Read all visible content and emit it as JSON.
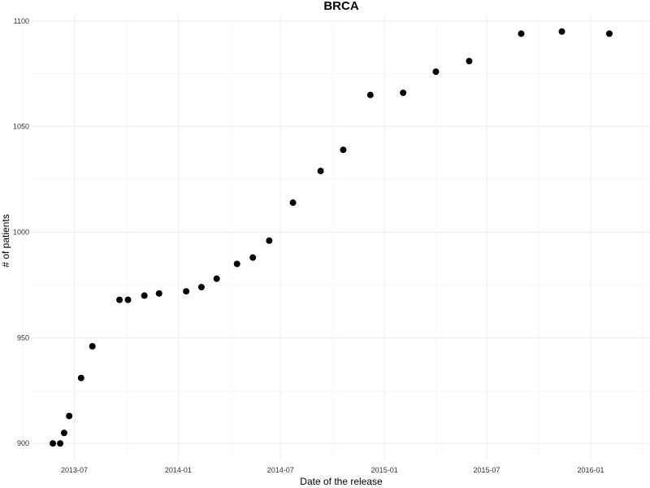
{
  "chart_data": {
    "type": "scatter",
    "title": "BRCA",
    "xlabel": "Date of the release",
    "ylabel": "# of patients",
    "x_ticks": [
      "2013-07",
      "2014-01",
      "2014-07",
      "2015-01",
      "2015-07",
      "2016-01"
    ],
    "y_ticks": [
      900,
      950,
      1000,
      1050,
      1100
    ],
    "xlim": [
      "2013-04-18",
      "2016-04-15"
    ],
    "ylim": [
      892,
      1103
    ],
    "grid": true,
    "point_color": "#000000",
    "background": "#ffffff",
    "points": [
      {
        "x": "2013-05-24",
        "y": 900
      },
      {
        "x": "2013-06-06",
        "y": 900
      },
      {
        "x": "2013-06-13",
        "y": 905
      },
      {
        "x": "2013-06-22",
        "y": 913
      },
      {
        "x": "2013-07-13",
        "y": 931
      },
      {
        "x": "2013-08-02",
        "y": 946
      },
      {
        "x": "2013-09-19",
        "y": 968
      },
      {
        "x": "2013-10-04",
        "y": 968
      },
      {
        "x": "2013-11-02",
        "y": 970
      },
      {
        "x": "2013-11-28",
        "y": 971
      },
      {
        "x": "2014-01-15",
        "y": 972
      },
      {
        "x": "2014-02-11",
        "y": 974
      },
      {
        "x": "2014-03-10",
        "y": 978
      },
      {
        "x": "2014-04-15",
        "y": 985
      },
      {
        "x": "2014-05-13",
        "y": 988
      },
      {
        "x": "2014-06-11",
        "y": 996
      },
      {
        "x": "2014-07-23",
        "y": 1014
      },
      {
        "x": "2014-09-10",
        "y": 1029
      },
      {
        "x": "2014-10-20",
        "y": 1039
      },
      {
        "x": "2014-12-07",
        "y": 1065
      },
      {
        "x": "2015-02-03",
        "y": 1066
      },
      {
        "x": "2015-04-02",
        "y": 1076
      },
      {
        "x": "2015-05-31",
        "y": 1081
      },
      {
        "x": "2015-08-31",
        "y": 1094
      },
      {
        "x": "2015-11-11",
        "y": 1095
      },
      {
        "x": "2016-02-03",
        "y": 1094
      }
    ]
  }
}
